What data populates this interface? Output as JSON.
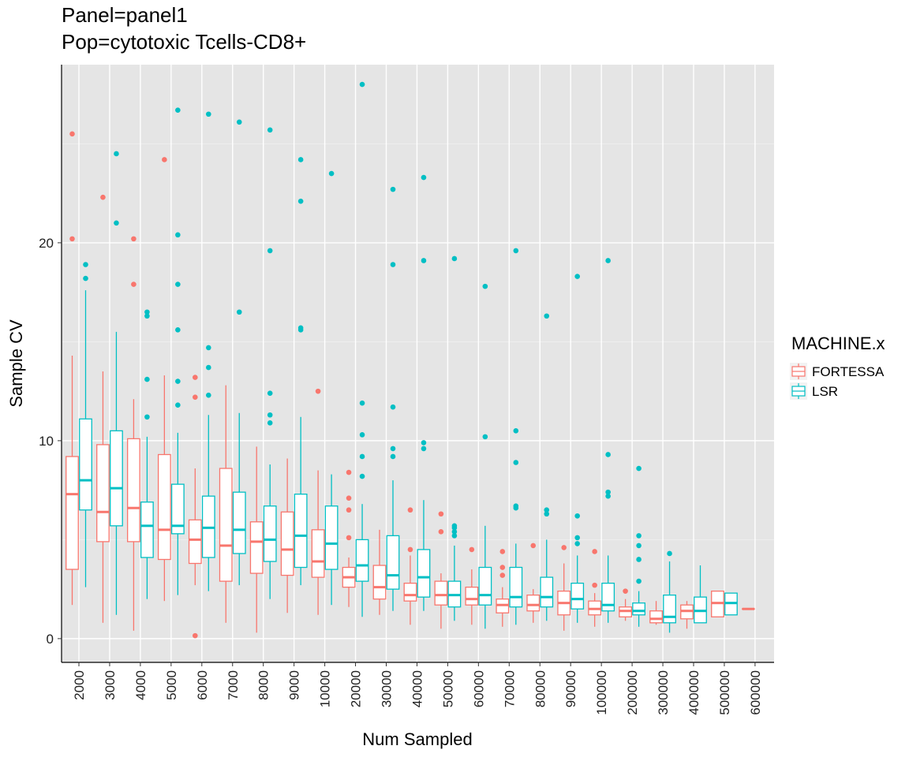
{
  "chart_data": {
    "type": "boxplot",
    "title_line1": "Panel=panel1",
    "title_line2": "Pop=cytotoxic Tcells-CD8+",
    "xlabel": "Num Sampled",
    "ylabel": "Sample CV",
    "ylim": [
      -1.2,
      29
    ],
    "y_ticks": [
      0,
      10,
      20
    ],
    "grid": true,
    "legend": {
      "title": "MACHINE.x",
      "position": "right"
    },
    "categories": [
      "2000",
      "3000",
      "4000",
      "5000",
      "6000",
      "7000",
      "8000",
      "9000",
      "10000",
      "20000",
      "30000",
      "40000",
      "50000",
      "60000",
      "70000",
      "80000",
      "90000",
      "100000",
      "200000",
      "300000",
      "400000",
      "500000",
      "600000"
    ],
    "series": [
      {
        "name": "FORTESSA",
        "color": "#F8766D",
        "boxes": [
          {
            "lo": 1.7,
            "q1": 3.5,
            "med": 7.3,
            "q3": 9.2,
            "hi": 14.3,
            "out": [
              20.2,
              25.5
            ]
          },
          {
            "lo": 0.8,
            "q1": 4.9,
            "med": 6.4,
            "q3": 9.8,
            "hi": 13.5,
            "out": [
              22.3
            ]
          },
          {
            "lo": 0.4,
            "q1": 4.9,
            "med": 6.6,
            "q3": 10.1,
            "hi": 12.1,
            "out": [
              17.9,
              20.2
            ]
          },
          {
            "lo": 1.9,
            "q1": 4.0,
            "med": 5.5,
            "q3": 9.3,
            "hi": 13.3,
            "out": [
              24.2
            ]
          },
          {
            "lo": 2.7,
            "q1": 3.8,
            "med": 5.0,
            "q3": 6.0,
            "hi": 8.6,
            "out": [
              0.15,
              12.2,
              13.2
            ]
          },
          {
            "lo": 0.8,
            "q1": 2.9,
            "med": 4.7,
            "q3": 8.6,
            "hi": 12.8,
            "out": []
          },
          {
            "lo": 0.3,
            "q1": 3.3,
            "med": 4.9,
            "q3": 5.9,
            "hi": 9.7,
            "out": []
          },
          {
            "lo": 1.3,
            "q1": 3.2,
            "med": 4.5,
            "q3": 6.4,
            "hi": 9.1,
            "out": []
          },
          {
            "lo": 1.2,
            "q1": 3.1,
            "med": 3.9,
            "q3": 5.5,
            "hi": 8.5,
            "out": [
              12.5
            ]
          },
          {
            "lo": 1.6,
            "q1": 2.6,
            "med": 3.1,
            "q3": 3.6,
            "hi": 4.1,
            "out": [
              5.1,
              6.5,
              7.1,
              8.4
            ]
          },
          {
            "lo": 1.2,
            "q1": 2.0,
            "med": 2.6,
            "q3": 3.7,
            "hi": 5.5,
            "out": []
          },
          {
            "lo": 0.7,
            "q1": 1.9,
            "med": 2.2,
            "q3": 2.8,
            "hi": 4.2,
            "out": [
              4.5,
              6.5
            ]
          },
          {
            "lo": 0.5,
            "q1": 1.7,
            "med": 2.2,
            "q3": 2.9,
            "hi": 3.3,
            "out": [
              5.4,
              6.3
            ]
          },
          {
            "lo": 0.7,
            "q1": 1.7,
            "med": 2.0,
            "q3": 2.6,
            "hi": 3.5,
            "out": [
              4.5
            ]
          },
          {
            "lo": 0.6,
            "q1": 1.3,
            "med": 1.7,
            "q3": 2.0,
            "hi": 2.6,
            "out": [
              3.2,
              3.6,
              4.4
            ]
          },
          {
            "lo": 0.8,
            "q1": 1.4,
            "med": 1.7,
            "q3": 2.2,
            "hi": 2.5,
            "out": [
              4.7
            ]
          },
          {
            "lo": 0.4,
            "q1": 1.2,
            "med": 1.8,
            "q3": 2.4,
            "hi": 3.8,
            "out": [
              4.6
            ]
          },
          {
            "lo": 0.6,
            "q1": 1.2,
            "med": 1.5,
            "q3": 1.9,
            "hi": 2.3,
            "out": [
              2.7,
              4.4
            ]
          },
          {
            "lo": 0.9,
            "q1": 1.1,
            "med": 1.4,
            "q3": 1.6,
            "hi": 2.0,
            "out": [
              2.4
            ]
          },
          {
            "lo": 0.7,
            "q1": 0.8,
            "med": 1.0,
            "q3": 1.4,
            "hi": 1.9,
            "out": []
          },
          {
            "lo": 0.5,
            "q1": 1.0,
            "med": 1.4,
            "q3": 1.7,
            "hi": 1.9,
            "out": []
          },
          {
            "lo": 1.1,
            "q1": 1.1,
            "med": 1.8,
            "q3": 2.4,
            "hi": 2.4,
            "out": []
          },
          {
            "lo": 1.5,
            "q1": 1.5,
            "med": 1.5,
            "q3": 1.5,
            "hi": 1.5,
            "out": []
          }
        ]
      },
      {
        "name": "LSR",
        "color": "#00BFC4",
        "boxes": [
          {
            "lo": 2.6,
            "q1": 6.5,
            "med": 8.0,
            "q3": 11.1,
            "hi": 17.6,
            "out": [
              18.2,
              18.9
            ]
          },
          {
            "lo": 1.2,
            "q1": 5.7,
            "med": 7.6,
            "q3": 10.5,
            "hi": 15.5,
            "out": [
              21.0,
              24.5
            ]
          },
          {
            "lo": 2.0,
            "q1": 4.1,
            "med": 5.7,
            "q3": 6.9,
            "hi": 10.2,
            "out": [
              11.2,
              13.1,
              16.3,
              16.5
            ]
          },
          {
            "lo": 2.2,
            "q1": 5.3,
            "med": 5.7,
            "q3": 7.8,
            "hi": 10.4,
            "out": [
              11.8,
              13.0,
              15.6,
              17.9,
              20.4,
              26.7
            ]
          },
          {
            "lo": 2.4,
            "q1": 4.1,
            "med": 5.6,
            "q3": 7.2,
            "hi": 11.3,
            "out": [
              12.3,
              13.7,
              14.7,
              26.5
            ]
          },
          {
            "lo": 2.7,
            "q1": 4.3,
            "med": 5.5,
            "q3": 7.4,
            "hi": 11.4,
            "out": [
              16.5,
              26.1
            ]
          },
          {
            "lo": 2.0,
            "q1": 3.9,
            "med": 5.0,
            "q3": 6.7,
            "hi": 8.8,
            "out": [
              10.9,
              11.3,
              12.4,
              19.6,
              25.7
            ]
          },
          {
            "lo": 2.7,
            "q1": 3.6,
            "med": 5.2,
            "q3": 7.3,
            "hi": 11.2,
            "out": [
              15.6,
              15.7,
              22.1,
              24.2
            ]
          },
          {
            "lo": 1.7,
            "q1": 3.5,
            "med": 4.8,
            "q3": 6.7,
            "hi": 8.3,
            "out": [
              23.5
            ]
          },
          {
            "lo": 1.1,
            "q1": 2.9,
            "med": 3.7,
            "q3": 5.0,
            "hi": 6.8,
            "out": [
              8.2,
              9.2,
              10.3,
              11.9,
              28.0
            ]
          },
          {
            "lo": 1.4,
            "q1": 2.5,
            "med": 3.2,
            "q3": 5.2,
            "hi": 8.0,
            "out": [
              9.2,
              9.6,
              11.7,
              18.9,
              22.7
            ]
          },
          {
            "lo": 1.4,
            "q1": 2.1,
            "med": 3.1,
            "q3": 4.5,
            "hi": 7.0,
            "out": [
              9.6,
              9.9,
              19.1,
              23.3
            ]
          },
          {
            "lo": 0.9,
            "q1": 1.6,
            "med": 2.2,
            "q3": 2.9,
            "hi": 4.7,
            "out": [
              5.2,
              5.4,
              5.6,
              5.7,
              19.2
            ]
          },
          {
            "lo": 0.5,
            "q1": 1.7,
            "med": 2.2,
            "q3": 3.6,
            "hi": 5.7,
            "out": [
              10.2,
              17.8
            ]
          },
          {
            "lo": 0.7,
            "q1": 1.6,
            "med": 2.1,
            "q3": 3.6,
            "hi": 4.8,
            "out": [
              6.6,
              6.7,
              8.9,
              10.5,
              19.6
            ]
          },
          {
            "lo": 0.9,
            "q1": 1.6,
            "med": 2.1,
            "q3": 3.1,
            "hi": 5.0,
            "out": [
              6.3,
              6.5,
              16.3
            ]
          },
          {
            "lo": 0.8,
            "q1": 1.5,
            "med": 2.0,
            "q3": 2.8,
            "hi": 4.2,
            "out": [
              4.8,
              5.1,
              6.2,
              18.3
            ]
          },
          {
            "lo": 0.8,
            "q1": 1.4,
            "med": 1.7,
            "q3": 2.8,
            "hi": 4.2,
            "out": [
              7.2,
              7.4,
              9.3,
              19.1
            ]
          },
          {
            "lo": 0.6,
            "q1": 1.2,
            "med": 1.4,
            "q3": 1.8,
            "hi": 2.4,
            "out": [
              2.9,
              4.0,
              4.7,
              5.2,
              8.6
            ]
          },
          {
            "lo": 0.3,
            "q1": 0.8,
            "med": 1.1,
            "q3": 2.2,
            "hi": 3.9,
            "out": [
              4.3
            ]
          },
          {
            "lo": 0.8,
            "q1": 0.8,
            "med": 1.4,
            "q3": 2.1,
            "hi": 3.7,
            "out": []
          },
          {
            "lo": 1.2,
            "q1": 1.2,
            "med": 1.8,
            "q3": 2.3,
            "hi": 2.3,
            "out": []
          },
          null
        ]
      }
    ]
  }
}
